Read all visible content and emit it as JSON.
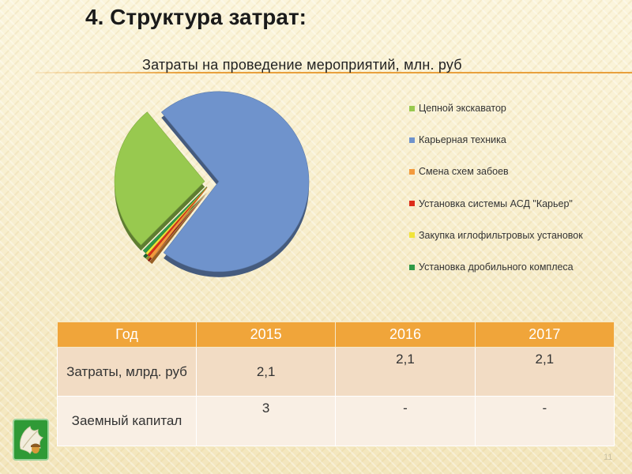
{
  "slide": {
    "title": "4. Структура затрат:",
    "page_number": "11"
  },
  "colors": {
    "accent": "#e8a03c",
    "table_header": "#f0a53a"
  },
  "chart_data": {
    "type": "pie",
    "title": "Затраты на проведение мероприятий, млн. руб",
    "legend_position": "right",
    "slices": [
      {
        "name": "Цепной экскаватор",
        "value": 26.5,
        "color": "#98c94f"
      },
      {
        "name": "Карьерная техника",
        "value": 71.5,
        "color": "#6f93cc"
      },
      {
        "name": "Смена схем забоев",
        "value": 0.6,
        "color": "#f39a3c"
      },
      {
        "name": "Установка системы АСД \"Карьер\"",
        "value": 0.4,
        "color": "#dd2c1a"
      },
      {
        "name": "Закупка иглофильтровых установок",
        "value": 0.4,
        "color": "#f1e43a"
      },
      {
        "name": "Установка дробильного комплеса",
        "value": 0.6,
        "color": "#2f9a47"
      }
    ]
  },
  "table": {
    "headers": [
      "Год",
      "2015",
      "2016",
      "2017"
    ],
    "rows": [
      {
        "label": "Затраты, млрд. руб",
        "values": [
          "2,1",
          "2,1",
          "2,1"
        ]
      },
      {
        "label": "Заемный капитал",
        "values": [
          "3",
          "-",
          "-"
        ]
      }
    ]
  },
  "logo": {
    "icon": "oak-leaf-acorn-icon"
  }
}
